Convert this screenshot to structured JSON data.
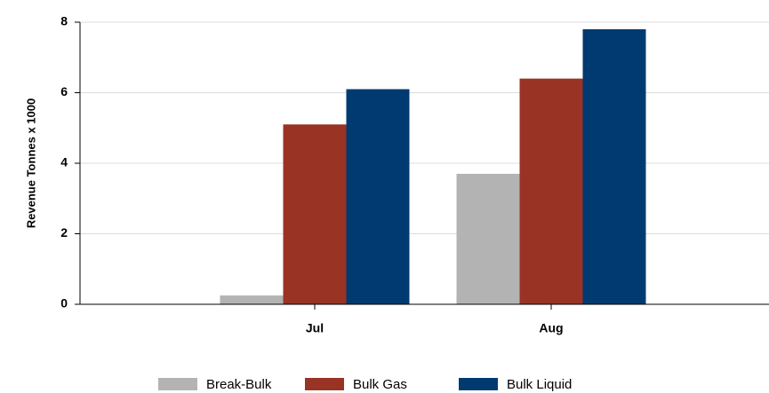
{
  "chart_data": {
    "type": "bar",
    "y_label": "Revenue Tonnes x 1000",
    "categories": [
      "Jul",
      "Aug"
    ],
    "series": [
      {
        "name": "Break-Bulk",
        "color": "#b3b3b3",
        "values": [
          0.25,
          3.7
        ]
      },
      {
        "name": "Bulk Gas",
        "color": "#993324",
        "values": [
          5.1,
          6.4
        ]
      },
      {
        "name": "Bulk Liquid",
        "color": "#003a70",
        "values": [
          6.1,
          7.8
        ]
      }
    ],
    "ylim": [
      0,
      8
    ],
    "yticks": [
      0,
      2,
      4,
      6,
      8
    ],
    "grid": true,
    "legend": "bottom"
  }
}
